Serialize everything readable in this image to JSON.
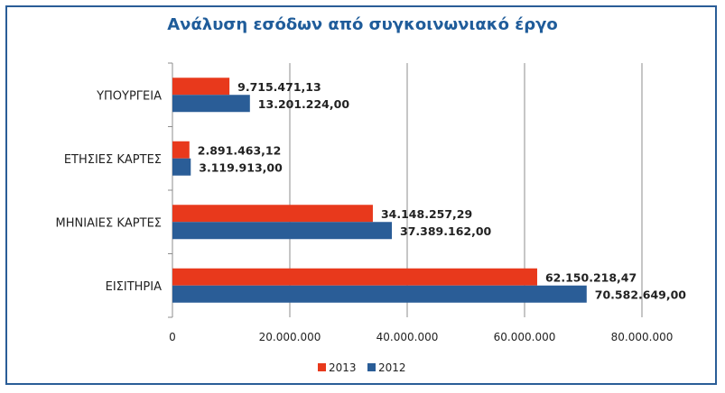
{
  "chart_data": {
    "type": "bar",
    "orientation": "horizontal",
    "title": "Ανάλυση εσόδων από συγκοινωνιακό έργο",
    "xlabel": "",
    "ylabel": "",
    "categories": [
      "ΥΠΟΥΡΓΕΙΑ",
      "ΕΤΗΣΙΕΣ ΚΑΡΤΕΣ",
      "ΜΗΝΙΑΙΕΣ ΚΑΡΤΕΣ",
      "ΕΙΣΙΤΗΡΙΑ"
    ],
    "series": [
      {
        "name": "2013",
        "color": "#e8391c",
        "values": [
          9715471.13,
          2891463.12,
          34148257.29,
          62150218.47
        ],
        "labels": [
          "9.715.471,13",
          "2.891.463,12",
          "34.148.257,29",
          "62.150.218,47"
        ]
      },
      {
        "name": "2012",
        "color": "#2a5d97",
        "values": [
          13201224.0,
          3119913.0,
          37389162.0,
          70582649.0
        ],
        "labels": [
          "13.201.224,00",
          "3.119.913,00",
          "37.389.162,00",
          "70.582.649,00"
        ]
      }
    ],
    "xlim": [
      0,
      80000000
    ],
    "ticks": [
      0,
      20000000,
      40000000,
      60000000,
      80000000
    ],
    "tick_labels": [
      "0",
      "20.000.000",
      "40.000.000",
      "60.000.000",
      "80.000.000"
    ],
    "grid": true,
    "legend": "bottom"
  }
}
